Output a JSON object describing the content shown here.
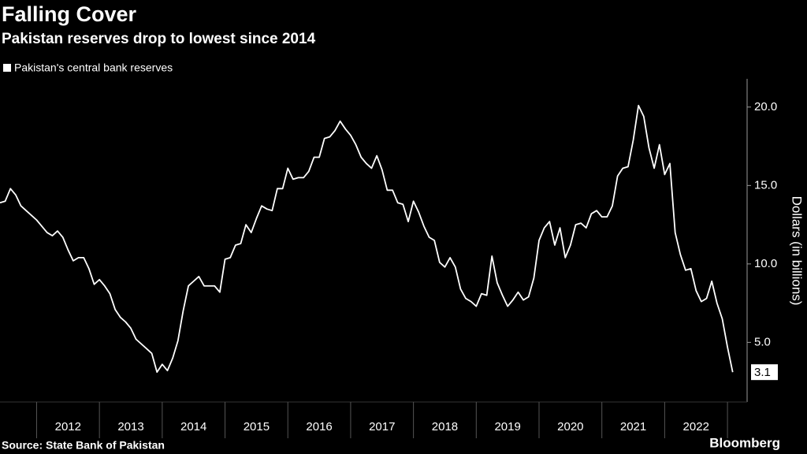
{
  "chart_data": {
    "type": "line",
    "title": "Falling Cover",
    "subtitle": "Pakistan reserves drop to lowest since 2014",
    "y_label": "Dollars (in billions)",
    "source": "Source: State Bank of Pakistan",
    "credit": "Bloomberg",
    "legend": "top-left",
    "x": [
      2011.417,
      2011.5,
      2011.583,
      2011.667,
      2011.75,
      2011.833,
      2011.917,
      2012,
      2012.083,
      2012.167,
      2012.25,
      2012.333,
      2012.417,
      2012.5,
      2012.583,
      2012.667,
      2012.75,
      2012.833,
      2012.917,
      2013,
      2013.083,
      2013.167,
      2013.25,
      2013.333,
      2013.417,
      2013.5,
      2013.583,
      2013.667,
      2013.75,
      2013.833,
      2013.917,
      2014,
      2014.083,
      2014.167,
      2014.25,
      2014.333,
      2014.417,
      2014.5,
      2014.583,
      2014.667,
      2014.75,
      2014.833,
      2014.917,
      2015,
      2015.083,
      2015.167,
      2015.25,
      2015.333,
      2015.417,
      2015.5,
      2015.583,
      2015.667,
      2015.75,
      2015.833,
      2015.917,
      2016,
      2016.083,
      2016.167,
      2016.25,
      2016.333,
      2016.417,
      2016.5,
      2016.583,
      2016.667,
      2016.75,
      2016.833,
      2016.917,
      2017,
      2017.083,
      2017.167,
      2017.25,
      2017.333,
      2017.417,
      2017.5,
      2017.583,
      2017.667,
      2017.75,
      2017.833,
      2017.917,
      2018,
      2018.083,
      2018.167,
      2018.25,
      2018.333,
      2018.417,
      2018.5,
      2018.583,
      2018.667,
      2018.75,
      2018.833,
      2018.917,
      2019,
      2019.083,
      2019.167,
      2019.25,
      2019.333,
      2019.417,
      2019.5,
      2019.583,
      2019.667,
      2019.75,
      2019.833,
      2019.917,
      2020,
      2020.083,
      2020.167,
      2020.25,
      2020.333,
      2020.417,
      2020.5,
      2020.583,
      2020.667,
      2020.75,
      2020.833,
      2020.917,
      2021,
      2021.083,
      2021.167,
      2021.25,
      2021.333,
      2021.417,
      2021.5,
      2021.583,
      2021.667,
      2021.75,
      2021.833,
      2021.917,
      2022,
      2022.083,
      2022.167,
      2022.25,
      2022.333,
      2022.417,
      2022.5,
      2022.583,
      2022.667,
      2022.75,
      2022.833,
      2022.917,
      2023,
      2023.083
    ],
    "series": [
      {
        "name": "Pakistan's central bank reserves",
        "color": "#ffffff",
        "values": [
          13.9,
          14.0,
          14.8,
          14.4,
          13.7,
          13.4,
          13.1,
          12.8,
          12.4,
          12.0,
          11.8,
          12.1,
          11.7,
          10.9,
          10.2,
          10.4,
          10.4,
          9.7,
          8.7,
          9.0,
          8.6,
          8.1,
          7.1,
          6.6,
          6.3,
          5.9,
          5.2,
          4.9,
          4.6,
          4.3,
          3.1,
          3.6,
          3.2,
          4.0,
          5.1,
          7.0,
          8.6,
          8.9,
          9.2,
          8.6,
          8.6,
          8.6,
          8.2,
          10.3,
          10.4,
          11.2,
          11.3,
          12.5,
          12.0,
          12.9,
          13.7,
          13.5,
          13.4,
          14.8,
          14.8,
          16.1,
          15.4,
          15.5,
          15.5,
          15.9,
          16.8,
          16.8,
          18.0,
          18.1,
          18.5,
          19.1,
          18.6,
          18.2,
          17.6,
          16.8,
          16.4,
          16.1,
          16.9,
          16.0,
          14.7,
          14.7,
          13.9,
          13.8,
          12.7,
          14.0,
          13.3,
          12.4,
          11.7,
          11.5,
          10.1,
          9.8,
          10.4,
          9.8,
          8.4,
          7.8,
          7.6,
          7.3,
          8.1,
          8.0,
          10.5,
          8.8,
          8.0,
          7.3,
          7.7,
          8.2,
          7.7,
          7.9,
          9.1,
          11.5,
          12.3,
          12.7,
          11.2,
          12.3,
          10.4,
          11.2,
          12.5,
          12.6,
          12.3,
          13.2,
          13.4,
          13.0,
          13.0,
          13.7,
          15.6,
          16.1,
          16.2,
          17.9,
          20.1,
          19.4,
          17.4,
          16.1,
          17.6,
          15.7,
          16.4,
          12.0,
          10.6,
          9.6,
          9.7,
          8.3,
          7.6,
          7.8,
          8.9,
          7.5,
          6.5,
          4.7,
          3.1
        ]
      }
    ],
    "xlim": [
      2011.417,
      2023.3
    ],
    "xticks": [
      {
        "value": 2012.5,
        "label": "2012"
      },
      {
        "value": 2013.5,
        "label": "2013"
      },
      {
        "value": 2014.5,
        "label": "2014"
      },
      {
        "value": 2015.5,
        "label": "2015"
      },
      {
        "value": 2016.5,
        "label": "2016"
      },
      {
        "value": 2017.5,
        "label": "2017"
      },
      {
        "value": 2018.5,
        "label": "2018"
      },
      {
        "value": 2019.5,
        "label": "2019"
      },
      {
        "value": 2020.5,
        "label": "2020"
      },
      {
        "value": 2021.5,
        "label": "2021"
      },
      {
        "value": 2022.5,
        "label": "2022"
      }
    ],
    "ylim": [
      1.2,
      21.8
    ],
    "yticks": [
      {
        "value": 5,
        "label": "5.0"
      },
      {
        "value": 10,
        "label": "10.0"
      },
      {
        "value": 15,
        "label": "15.0"
      },
      {
        "value": 20,
        "label": "20.0"
      }
    ],
    "grid": false
  }
}
